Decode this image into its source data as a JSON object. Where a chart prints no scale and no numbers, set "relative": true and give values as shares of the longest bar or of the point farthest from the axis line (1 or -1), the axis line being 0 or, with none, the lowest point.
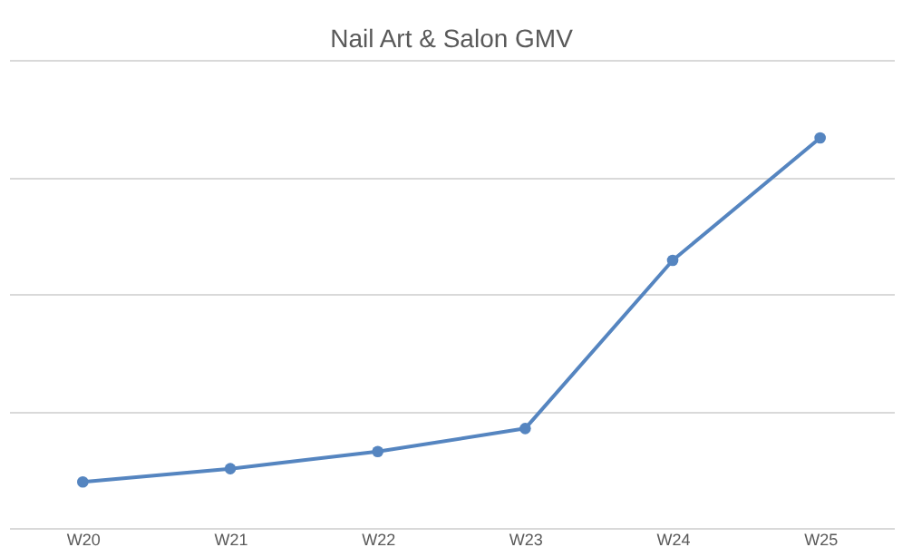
{
  "chart_data": {
    "type": "line",
    "title": "Nail Art & Salon GMV",
    "categories": [
      "W20",
      "W21",
      "W22",
      "W23",
      "W24",
      "W25"
    ],
    "series": [
      {
        "color": "#5585c0",
        "values": [
          0.118,
          0.152,
          0.196,
          0.255,
          0.686,
          1
        ]
      }
    ],
    "relative": true,
    "marker": "circle",
    "line_style": "solid",
    "grid": "y"
  }
}
